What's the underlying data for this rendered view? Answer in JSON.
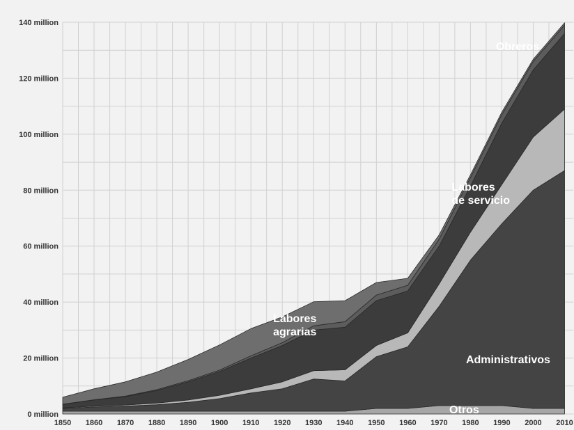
{
  "chart_data": {
    "type": "area",
    "stacked": true,
    "grid": true,
    "x": [
      1850,
      1860,
      1870,
      1880,
      1890,
      1900,
      1910,
      1920,
      1930,
      1940,
      1950,
      1960,
      1970,
      1980,
      1990,
      2000,
      2010
    ],
    "x_ticks": [
      "1850",
      "1860",
      "1870",
      "1880",
      "1890",
      "1900",
      "1910",
      "1920",
      "1930",
      "1940",
      "1950",
      "1960",
      "1970",
      "1980",
      "1990",
      "2000",
      "2010"
    ],
    "y_ticks": [
      "0 million",
      "20 million",
      "40 million",
      "60 million",
      "80 million",
      "100 million",
      "120 million",
      "140 million"
    ],
    "ylim": [
      0,
      140
    ],
    "xlim": [
      1850,
      2013
    ],
    "series": [
      {
        "name": "Otros",
        "color": "#a6a6a6",
        "values": [
          1,
          1,
          1,
          1,
          1,
          1,
          1,
          1,
          1,
          1,
          2,
          2,
          3,
          3,
          3,
          2,
          2
        ]
      },
      {
        "name": "Administrativos",
        "color": "#444444",
        "values": [
          1,
          1.5,
          1.8,
          2.3,
          3.2,
          4.5,
          6.5,
          8,
          11.5,
          10.8,
          18.5,
          22,
          35.5,
          52,
          65,
          78,
          85
        ]
      },
      {
        "name": "",
        "color": "#b8b8b8",
        "values": [
          0.2,
          0.3,
          0.4,
          0.6,
          0.8,
          1.2,
          1.5,
          2.5,
          3,
          4,
          4,
          5,
          8,
          10,
          14,
          19,
          22
        ]
      },
      {
        "name": "Labores de servicio",
        "color": "#3c3c3c",
        "values": [
          1.2,
          2.2,
          3,
          4.5,
          6.5,
          8.5,
          11,
          13,
          14.5,
          15.2,
          16,
          15,
          13.5,
          16.5,
          22,
          24,
          27
        ]
      },
      {
        "name": "Obreros",
        "color": "#5c5c5c",
        "values": [
          0.1,
          0.1,
          0.2,
          0.3,
          0.4,
          0.5,
          0.8,
          1,
          1.5,
          2,
          2,
          2,
          2.5,
          3,
          3,
          3,
          3
        ]
      },
      {
        "name": "Labores agrarias",
        "color": "#6e6e6e",
        "values": [
          2.5,
          3.9,
          5.1,
          6.3,
          7.6,
          9,
          9.7,
          9.2,
          8.6,
          7.5,
          4.5,
          2.5,
          1.5,
          1,
          0.9,
          0.8,
          0.8
        ]
      }
    ],
    "annotations": [
      {
        "series": "Labores agrarias",
        "lines": [
          "Labores",
          "agrarias"
        ]
      },
      {
        "series": "Labores de servicio",
        "lines": [
          "Labores",
          "de servicio"
        ]
      },
      {
        "series": "Obreros",
        "lines": [
          "Obreros"
        ]
      },
      {
        "series": "Administrativos",
        "lines": [
          "Administrativos"
        ]
      },
      {
        "series": "Otros",
        "lines": [
          "Otros"
        ]
      }
    ]
  }
}
